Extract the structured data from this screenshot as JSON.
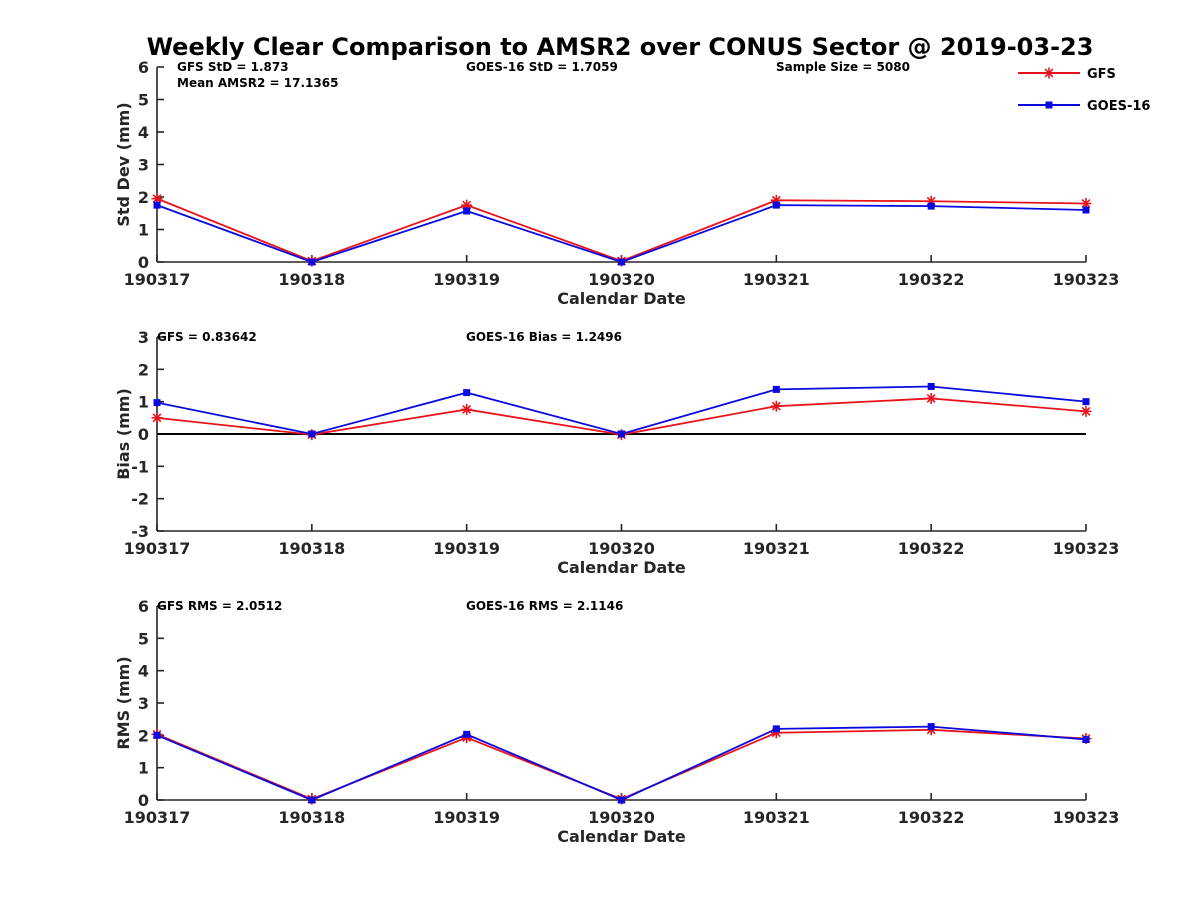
{
  "title": "Weekly Clear Comparison to AMSR2 over CONUS Sector @ 2019-03-23",
  "colors": {
    "gfs": "#e8131b",
    "goes16": "#0a0ae0",
    "axis": "#262626",
    "zero_line": "#000000"
  },
  "legend": {
    "placement": "top-right",
    "entries": [
      {
        "name": "GFS",
        "color": "#e8131b",
        "marker": "asterisk"
      },
      {
        "name": "GOES-16",
        "color": "#0a0ae0",
        "marker": "square"
      }
    ]
  },
  "chart_data": [
    {
      "type": "line",
      "xlabel": "Calendar Date",
      "ylabel": "Std Dev (mm)",
      "categories": [
        "190317",
        "190318",
        "190319",
        "190320",
        "190321",
        "190322",
        "190323"
      ],
      "ylim": [
        0,
        6
      ],
      "yticks": [
        "0",
        "1",
        "2",
        "3",
        "4",
        "5",
        "6"
      ],
      "annotations": [
        "GFS StD = 1.873",
        "Mean AMSR2 = 17.1365",
        "GOES-16 StD = 1.7059",
        "Sample Size = 5080"
      ],
      "zero_line": false,
      "series": [
        {
          "name": "GFS",
          "color": "#e8131b",
          "marker": "asterisk",
          "values": [
            1.95,
            0.03,
            1.75,
            0.03,
            1.9,
            1.87,
            1.8
          ]
        },
        {
          "name": "GOES-16",
          "color": "#0a0ae0",
          "marker": "square",
          "values": [
            1.75,
            0.0,
            1.57,
            0.0,
            1.75,
            1.72,
            1.6
          ]
        }
      ]
    },
    {
      "type": "line",
      "xlabel": "Calendar Date",
      "ylabel": "Bias (mm)",
      "categories": [
        "190317",
        "190318",
        "190319",
        "190320",
        "190321",
        "190322",
        "190323"
      ],
      "ylim": [
        -3,
        3
      ],
      "yticks": [
        "-3",
        "-2",
        "-1",
        "0",
        "1",
        "2",
        "3"
      ],
      "annotations": [
        "GFS = 0.83642",
        "GOES-16 Bias  = 1.2496"
      ],
      "zero_line": true,
      "series": [
        {
          "name": "GFS",
          "color": "#e8131b",
          "marker": "asterisk",
          "values": [
            0.5,
            -0.02,
            0.76,
            -0.02,
            0.86,
            1.1,
            0.7
          ]
        },
        {
          "name": "GOES-16",
          "color": "#0a0ae0",
          "marker": "square",
          "values": [
            0.97,
            0.0,
            1.28,
            0.0,
            1.38,
            1.47,
            1.0
          ]
        }
      ]
    },
    {
      "type": "line",
      "xlabel": "Calendar Date",
      "ylabel": "RMS (mm)",
      "categories": [
        "190317",
        "190318",
        "190319",
        "190320",
        "190321",
        "190322",
        "190323"
      ],
      "ylim": [
        0,
        6
      ],
      "yticks": [
        "0",
        "1",
        "2",
        "3",
        "4",
        "5",
        "6"
      ],
      "annotations": [
        "GFS RMS = 2.0512",
        "GOES-16 RMS = 2.1146"
      ],
      "zero_line": false,
      "series": [
        {
          "name": "GFS",
          "color": "#e8131b",
          "marker": "asterisk",
          "values": [
            2.03,
            0.03,
            1.93,
            0.03,
            2.08,
            2.17,
            1.9
          ]
        },
        {
          "name": "GOES-16",
          "color": "#0a0ae0",
          "marker": "square",
          "values": [
            2.0,
            0.0,
            2.03,
            0.0,
            2.2,
            2.27,
            1.87
          ]
        }
      ]
    }
  ]
}
